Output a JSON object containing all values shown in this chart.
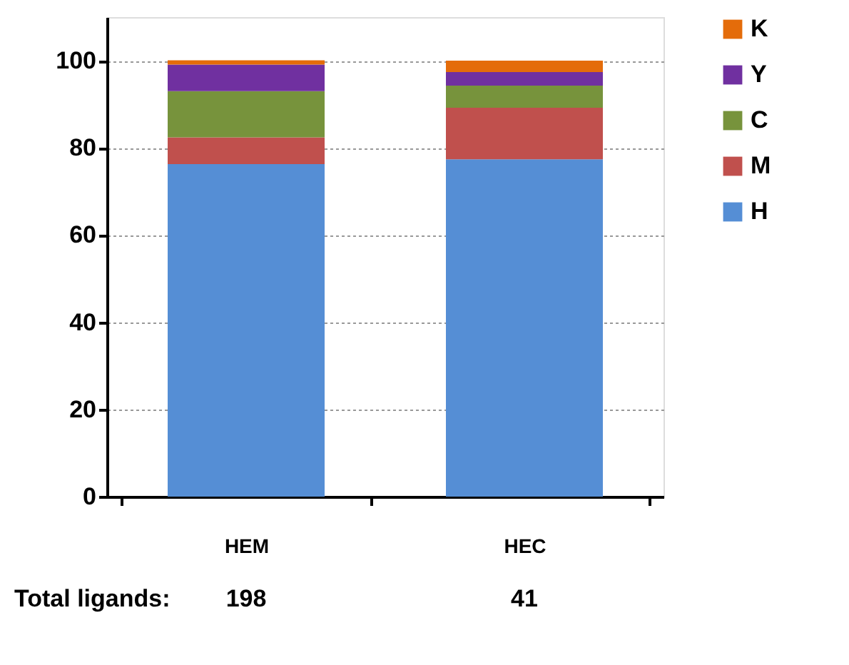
{
  "chart_data": {
    "type": "bar",
    "stacked": true,
    "categories": [
      "HEM",
      "HEC"
    ],
    "series": [
      {
        "name": "H",
        "color": "#558ed5",
        "values": [
          76.3,
          77.4
        ]
      },
      {
        "name": "M",
        "color": "#c0504d",
        "values": [
          6.1,
          11.8
        ]
      },
      {
        "name": "C",
        "color": "#77933c",
        "values": [
          10.6,
          5.1
        ]
      },
      {
        "name": "Y",
        "color": "#7030a0",
        "values": [
          6.1,
          3.1
        ]
      },
      {
        "name": "K",
        "color": "#e46c0a",
        "values": [
          1.0,
          2.6
        ]
      }
    ],
    "ylim": [
      0,
      110
    ],
    "yticks": [
      0,
      20,
      40,
      60,
      80,
      100
    ],
    "grid": "y",
    "legend": "right",
    "annotations": [
      "Total ligands:",
      "198",
      "41"
    ]
  }
}
